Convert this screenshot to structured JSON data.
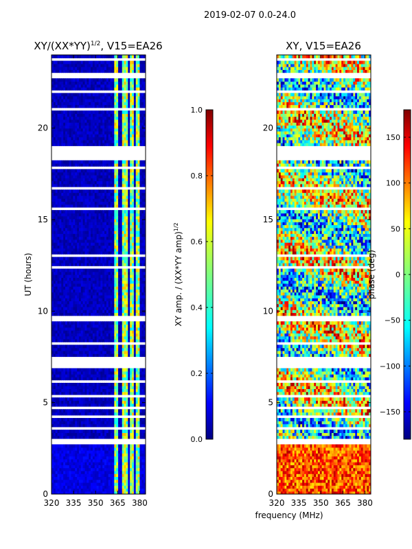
{
  "suptitle": "2019-02-07 0.0-24.0",
  "chart_data": [
    {
      "type": "heatmap",
      "title_main": "XY/(XX*YY)",
      "title_sup": "1/2",
      "title_rest": ", V15=EA26",
      "ylabel": "UT (hours)",
      "xlim": [
        320,
        384
      ],
      "ylim": [
        0,
        24
      ],
      "xticks": [
        320,
        335,
        350,
        365,
        380
      ],
      "yticks": [
        0,
        5,
        10,
        15,
        20
      ],
      "colormap": "jet",
      "colorbar": {
        "label_main": "XY amp. / (XX*YY amp)",
        "label_sup": "1/2",
        "range": [
          0.0,
          1.0
        ],
        "ticks": [
          "0.0",
          "0.2",
          "0.4",
          "0.6",
          "0.8",
          "1.0"
        ]
      }
    },
    {
      "type": "heatmap",
      "title": "XY, V15=EA26",
      "xlabel": "frequency (MHz)",
      "xlim": [
        320,
        384
      ],
      "ylim": [
        0,
        24
      ],
      "xticks": [
        320,
        335,
        350,
        365,
        380
      ],
      "yticks": [
        0,
        5,
        10,
        15,
        20
      ],
      "colormap": "jet",
      "colorbar": {
        "label": "phase (deg)",
        "range": [
          -180,
          180
        ],
        "ticks": [
          "-150",
          "-100",
          "-50",
          "0",
          "50",
          "100",
          "150"
        ]
      }
    }
  ],
  "flagged_ut_ranges": [
    [
      2.7,
      3.05
    ],
    [
      3.6,
      3.75
    ],
    [
      4.2,
      4.35
    ],
    [
      4.7,
      4.85
    ],
    [
      5.3,
      5.45
    ],
    [
      6.1,
      6.25
    ],
    [
      6.9,
      7.6
    ],
    [
      8.2,
      8.35
    ],
    [
      9.4,
      9.7
    ],
    [
      12.4,
      12.55
    ],
    [
      13.0,
      13.15
    ],
    [
      15.5,
      15.65
    ],
    [
      16.6,
      16.75
    ],
    [
      17.8,
      17.95
    ],
    [
      18.3,
      19.1
    ],
    [
      20.9,
      21.05
    ],
    [
      21.9,
      22.05
    ],
    [
      22.8,
      23.1
    ],
    [
      23.7,
      23.85
    ]
  ],
  "rfi_bands_mhz": [
    [
      363,
      366
    ],
    [
      368,
      372
    ],
    [
      374,
      376
    ],
    [
      378,
      380
    ]
  ]
}
